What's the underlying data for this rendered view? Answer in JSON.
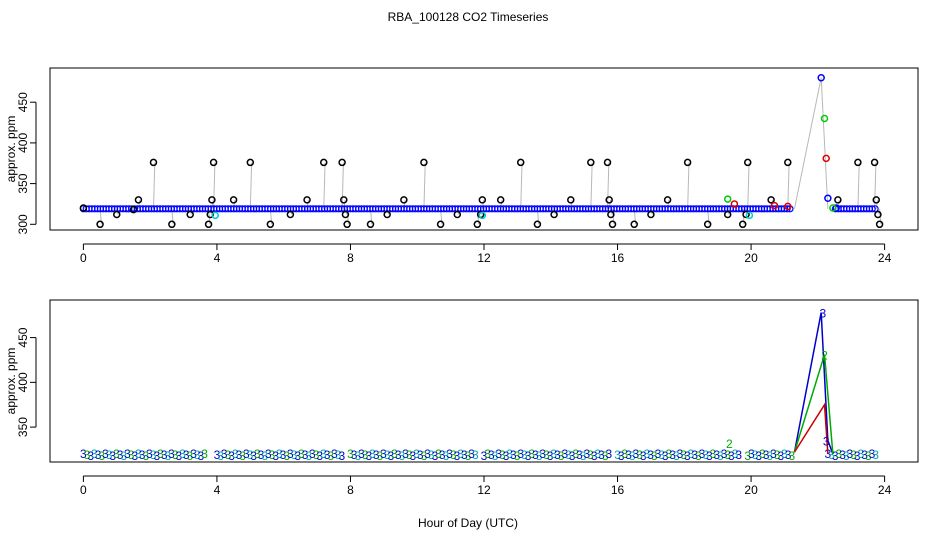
{
  "title": "RBA_100128  CO2 Timeseries",
  "xlabel": "Hour of Day (UTC)",
  "chart_data": [
    {
      "type": "scatter",
      "panel": "top",
      "ylabel": "approx. ppm",
      "xlim": [
        -1.0,
        25.0
      ],
      "ylim": [
        293,
        492
      ],
      "xticks": [
        0,
        4,
        8,
        12,
        16,
        20,
        24
      ],
      "yticks": [
        300,
        350,
        400,
        450
      ],
      "grid": false,
      "series": [
        {
          "name": "black",
          "color": "#000000",
          "marker": "circle",
          "x": [
            0.0,
            0.5,
            1.0,
            1.5,
            1.65,
            2.1,
            2.65,
            3.2,
            3.75,
            3.8,
            3.85,
            3.9,
            4.5,
            5.0,
            5.6,
            6.2,
            6.7,
            7.2,
            7.75,
            7.8,
            7.85,
            7.9,
            8.6,
            9.1,
            9.6,
            10.2,
            10.7,
            11.2,
            11.8,
            11.9,
            11.95,
            12.5,
            13.1,
            13.6,
            14.1,
            14.6,
            15.2,
            15.7,
            15.75,
            15.8,
            15.85,
            16.5,
            17.0,
            17.5,
            18.1,
            18.7,
            19.3,
            19.75,
            19.85,
            19.9,
            20.6,
            21.1,
            22.6,
            23.2,
            23.7,
            23.75,
            23.8,
            23.85
          ],
          "y": [
            320,
            300,
            312,
            318,
            330,
            376,
            300,
            312,
            300,
            312,
            330,
            376,
            330,
            376,
            300,
            312,
            330,
            376,
            376,
            330,
            312,
            300,
            300,
            312,
            330,
            376,
            300,
            312,
            300,
            312,
            330,
            330,
            376,
            300,
            312,
            330,
            376,
            376,
            330,
            312,
            300,
            300,
            312,
            330,
            376,
            300,
            312,
            300,
            312,
            376,
            330,
            376,
            330,
            376,
            376,
            330,
            312,
            300
          ]
        },
        {
          "name": "blue",
          "color": "#0000ff",
          "marker": "circle",
          "x": [
            22.1,
            22.3,
            22.55
          ],
          "y": [
            480,
            332,
            320
          ]
        },
        {
          "name": "green",
          "color": "#00cc00",
          "marker": "circle",
          "x": [
            19.3,
            22.2,
            22.45
          ],
          "y": [
            331,
            430,
            320
          ]
        },
        {
          "name": "red",
          "color": "#dd0000",
          "marker": "circle",
          "x": [
            19.5,
            20.7,
            21.1,
            22.25
          ],
          "y": [
            325,
            323,
            322,
            381
          ]
        },
        {
          "name": "cyan",
          "color": "#00cccc",
          "marker": "circle",
          "x": [
            3.95,
            11.95,
            19.95
          ],
          "y": [
            311,
            311,
            311
          ]
        }
      ],
      "baseline_series": {
        "name": "blue-dense",
        "color": "#0000ff",
        "y": 319,
        "x_range": [
          0.0,
          23.8
        ]
      }
    },
    {
      "type": "line",
      "panel": "bottom",
      "ylabel": "approx. ppm",
      "xlim": [
        -1.0,
        25.0
      ],
      "ylim": [
        311,
        492
      ],
      "xticks": [
        0,
        4,
        8,
        12,
        16,
        20,
        24
      ],
      "yticks": [
        350,
        400,
        450
      ],
      "grid": false,
      "segments": [
        [
          0.0,
          3.7
        ],
        [
          4.0,
          7.8
        ],
        [
          8.0,
          11.8
        ],
        [
          12.0,
          15.8
        ],
        [
          16.0,
          19.7
        ],
        [
          19.9,
          21.3
        ],
        [
          22.3,
          23.8
        ]
      ],
      "level_ppm": 320,
      "marker_label": "3",
      "series": [
        {
          "name": "blue",
          "color": "#0000cc",
          "x": [
            21.3,
            22.1,
            22.3,
            22.45
          ],
          "y": [
            322,
            478,
            335,
            320
          ]
        },
        {
          "name": "green",
          "color": "#00aa00",
          "x": [
            21.3,
            22.2,
            22.45
          ],
          "y": [
            322,
            431,
            320
          ]
        },
        {
          "name": "red",
          "color": "#cc0000",
          "x": [
            21.3,
            22.2,
            22.3
          ],
          "y": [
            322,
            375,
            320
          ]
        }
      ],
      "annotations": [
        {
          "label": "3",
          "color": "#0000cc",
          "x": 22.15,
          "y": 478
        },
        {
          "label": "2",
          "color": "#00aa00",
          "x": 22.2,
          "y": 431
        },
        {
          "label": "3",
          "color": "#0000cc",
          "x": 22.25,
          "y": 335
        },
        {
          "label": "2",
          "color": "#00aa00",
          "x": 19.35,
          "y": 332
        }
      ]
    }
  ]
}
